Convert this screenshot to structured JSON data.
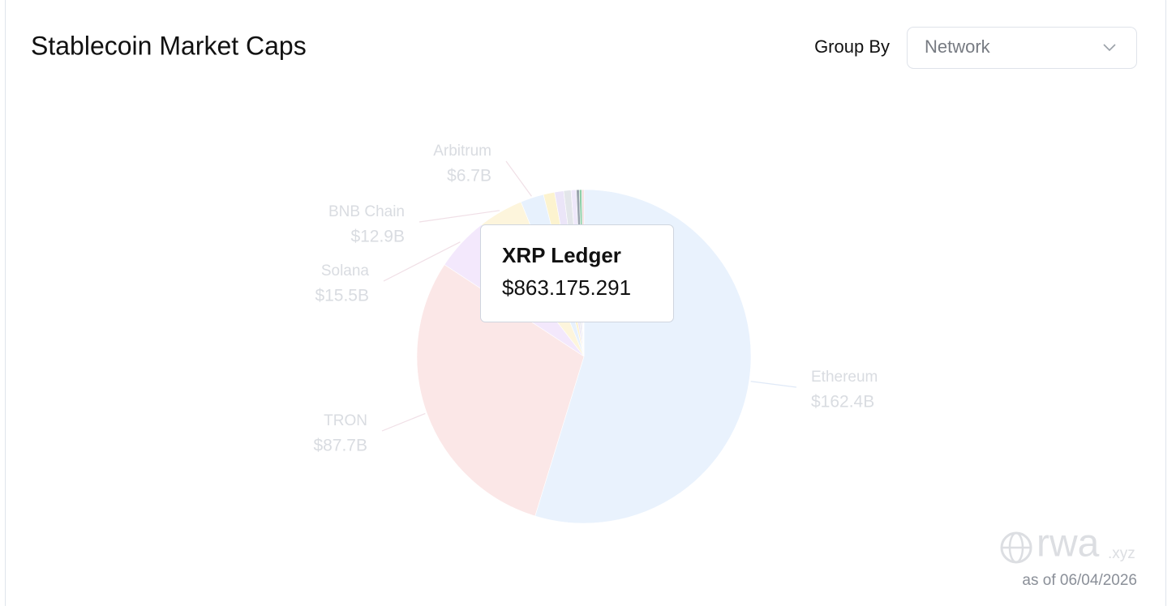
{
  "chart_data": {
    "type": "pie",
    "title": "Stablecoin Market Caps",
    "categories": [
      "Ethereum",
      "TRON",
      "Solana",
      "BNB Chain",
      "Arbitrum",
      null,
      null,
      null,
      null,
      "XRP Ledger",
      null,
      null
    ],
    "values": [
      162.4,
      87.7,
      15.5,
      12.9,
      6.7,
      3.2,
      2.6,
      2.1,
      1.5,
      0.863175291,
      0.7,
      0.6
    ],
    "value_labels": [
      "$162.4B",
      "$87.7B",
      "$15.5B",
      "$12.9B",
      "$6.7B",
      null,
      null,
      null,
      null,
      "$863.175.291",
      null,
      null
    ],
    "colors": [
      "#e9f2fd",
      "#fbe7e7",
      "#f3e8fc",
      "#fdf5dc",
      "#e7f1fd",
      "#fcf3cf",
      "#ebe5f8",
      "#e3e6ea",
      "#eee8fa",
      "#9aa3ae",
      "#8ccfa8",
      "#f2dada"
    ]
  },
  "controls": {
    "group_by_label": "Group By",
    "group_by_value": "Network"
  },
  "footer": {
    "brand": "rwa",
    "brand_suffix": ".xyz",
    "date": "as of 06/04/2026"
  }
}
